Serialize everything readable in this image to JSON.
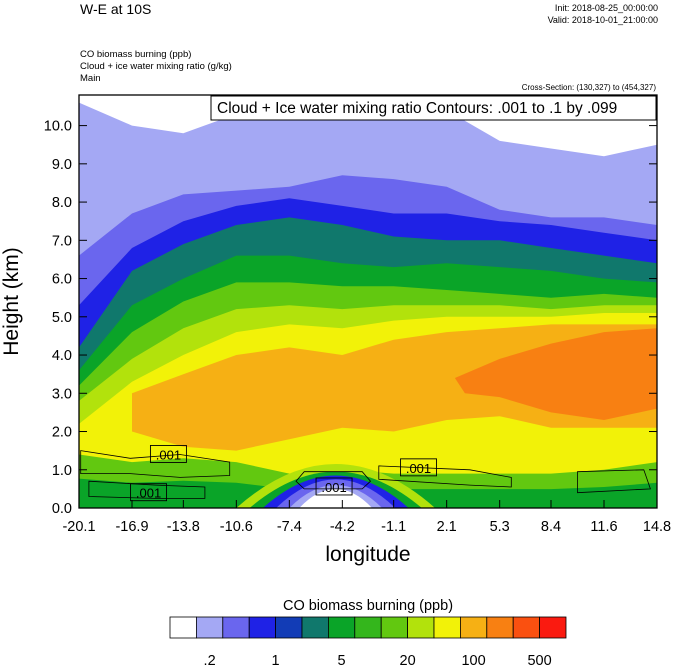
{
  "header": {
    "title": "W-E at 10S",
    "init": "Init: 2018-08-25_00:00:00",
    "valid": "Valid: 2018-10-01_21:00:00",
    "variables": [
      "CO biomass burning   (ppb)",
      "Cloud + ice water mixing ratio   (g/kg)",
      "Main"
    ],
    "cross_section": "Cross-Section: (130,327) to (454,327)"
  },
  "chart_data": {
    "type": "heatmap",
    "title": "",
    "xlabel": "longitude",
    "ylabel": "Height (km)",
    "xlim": [
      -20.1,
      14.8
    ],
    "ylim": [
      0.0,
      10.8
    ],
    "x_ticks": [
      "-20.1",
      "-16.9",
      "-13.8",
      "-10.6",
      "-7.4",
      "-4.2",
      "-1.1",
      "2.1",
      "5.3",
      "8.4",
      "11.6",
      "14.8"
    ],
    "y_ticks": [
      "0.0",
      "1.0",
      "2.0",
      "3.0",
      "4.0",
      "5.0",
      "6.0",
      "7.0",
      "8.0",
      "9.0",
      "10.0"
    ],
    "contour_info": "Cloud + Ice water mixing ratio Contours: .001 to .1 by .099",
    "contour_labels": [
      {
        "text": ".001",
        "x": -14.7,
        "y": 1.4
      },
      {
        "text": ".001",
        "x": -15.9,
        "y": 0.4
      },
      {
        "text": ".001",
        "x": -4.7,
        "y": 0.55
      },
      {
        "text": ".001",
        "x": 0.4,
        "y": 1.05
      }
    ],
    "colorbar": {
      "title": "CO biomass burning  (ppb)",
      "colors": [
        "#ffffff",
        "#a4a8f4",
        "#6a66ee",
        "#1f22e6",
        "#123cb6",
        "#10786c",
        "#0aa428",
        "#34b61c",
        "#62c810",
        "#b2e20c",
        "#f2f208",
        "#f6b014",
        "#f88012",
        "#fa5010",
        "#fa1a10"
      ],
      "labels": [
        ".2",
        "1",
        "5",
        "20",
        "100",
        "500"
      ]
    },
    "levels": {
      "x": [
        -20.1,
        -16.9,
        -13.8,
        -10.6,
        -7.4,
        -4.2,
        -1.1,
        2.1,
        5.3,
        8.4,
        11.6,
        14.8
      ],
      "ceiling": [
        10.6,
        10.0,
        9.8,
        10.3,
        10.4,
        10.6,
        10.5,
        10.4,
        9.6,
        9.4,
        9.2,
        9.5
      ],
      "light_blue_base": [
        6.6,
        7.7,
        8.2,
        8.3,
        8.4,
        8.7,
        8.6,
        8.4,
        7.8,
        7.6,
        7.6,
        7.4
      ],
      "blue_base": [
        5.3,
        6.8,
        7.5,
        7.9,
        8.1,
        7.9,
        7.7,
        7.7,
        7.5,
        7.4,
        7.2,
        7.0
      ],
      "dark_blue_base": [
        4.2,
        6.2,
        6.9,
        7.4,
        7.6,
        7.4,
        7.1,
        7.0,
        7.0,
        6.8,
        6.6,
        6.4
      ],
      "teal_base": [
        3.6,
        5.3,
        6.0,
        6.6,
        6.6,
        6.4,
        6.3,
        6.4,
        6.3,
        6.2,
        6.0,
        5.9
      ],
      "green_base": [
        3.2,
        4.6,
        5.4,
        5.9,
        5.9,
        5.8,
        5.8,
        5.7,
        5.6,
        5.5,
        5.6,
        5.5
      ],
      "lime_base": [
        2.8,
        3.9,
        4.7,
        5.2,
        5.3,
        5.2,
        5.3,
        5.3,
        5.3,
        5.2,
        5.3,
        5.3
      ],
      "yellow_base": [
        2.2,
        3.3,
        4.0,
        4.6,
        4.8,
        4.7,
        4.9,
        5.0,
        5.0,
        5.0,
        5.1,
        5.1
      ],
      "orange_top": [
        0.0,
        3.0,
        3.5,
        4.0,
        4.2,
        4.0,
        4.4,
        4.6,
        4.7,
        4.8,
        4.8,
        4.8
      ],
      "orange_bottom": [
        0.0,
        2.0,
        1.6,
        1.5,
        1.8,
        2.1,
        2.0,
        2.3,
        2.4,
        2.1,
        2.1,
        2.1
      ],
      "surface_green_top": [
        1.4,
        1.2,
        1.3,
        1.2,
        0.9,
        1.0,
        0.9,
        0.9,
        0.9,
        0.9,
        1.0,
        1.2
      ]
    }
  }
}
